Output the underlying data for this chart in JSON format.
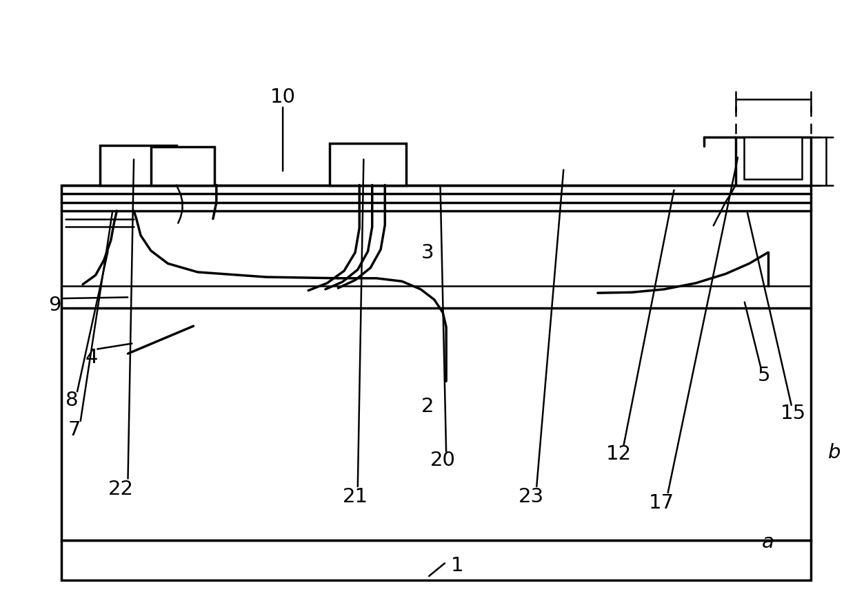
{
  "bg_color": "#ffffff",
  "line_color": "#000000",
  "lw": 2.5,
  "lw_thin": 1.8,
  "fig_width": 12.4,
  "fig_height": 8.95
}
